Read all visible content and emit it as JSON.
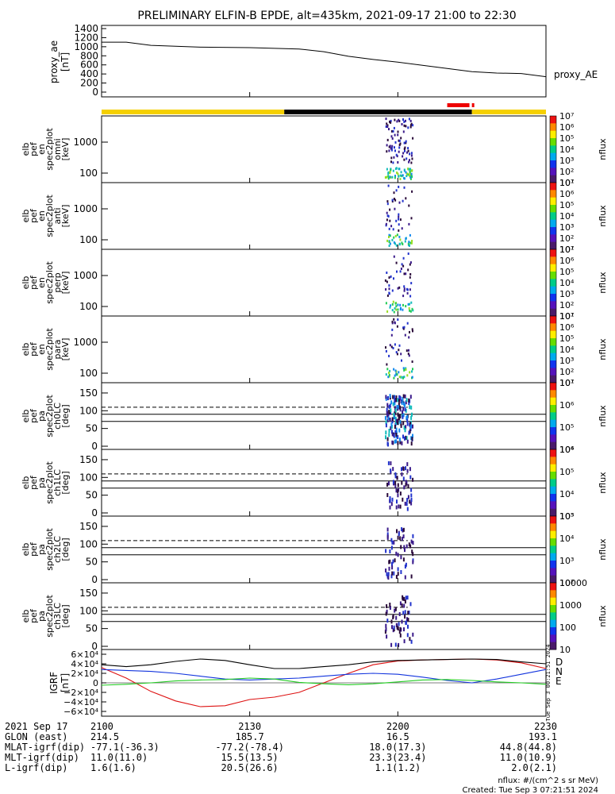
{
  "title": "PRELIMINARY ELFIN-B EPDE, alt=435km, 2021-09-17 21:00 to 22:30",
  "colors": {
    "sat_yellow": "#f5d000",
    "sat_black": "#000000",
    "sat_red": "#ee0000",
    "D": "#dd1111",
    "N": "#1133dd",
    "E": "#22cc22"
  },
  "chart_data": [
    {
      "type": "line",
      "name": "proxy_ae",
      "ylabel": "proxy_ae [nT]",
      "right_label": "proxy_AE",
      "ylim": [
        0,
        1400
      ],
      "yticks": [
        "0",
        "200",
        "400",
        "600",
        "800",
        "1000",
        "1200",
        "1400"
      ],
      "x_minutes": [
        0,
        5,
        10,
        20,
        30,
        40,
        45,
        50,
        55,
        60,
        65,
        70,
        75,
        80,
        85,
        90
      ],
      "values": [
        1100,
        1100,
        1030,
        990,
        980,
        950,
        890,
        790,
        720,
        660,
        590,
        520,
        450,
        420,
        410,
        340
      ]
    },
    {
      "type": "heatmap",
      "name": "omni",
      "ylabel": "elb pef en spec2plot omni [keV]",
      "yticks": [
        "100",
        "1000"
      ],
      "zlabel": "nflux",
      "zticks": [
        "10¹",
        "10²",
        "10³",
        "10⁴",
        "10⁵",
        "10⁶",
        "10⁷"
      ],
      "active_minutes": [
        58,
        62
      ]
    },
    {
      "type": "heatmap",
      "name": "anti",
      "ylabel": "elb pef en spec2plot anti [keV]",
      "yticks": [
        "100",
        "1000"
      ],
      "zlabel": "nflux",
      "zticks": [
        "10¹",
        "10²",
        "10³",
        "10⁴",
        "10⁵",
        "10⁶",
        "10⁷"
      ],
      "active_minutes": [
        58,
        62
      ]
    },
    {
      "type": "heatmap",
      "name": "perp",
      "ylabel": "elb pef en spec2plot perp [keV]",
      "yticks": [
        "100",
        "1000"
      ],
      "zlabel": "nflux",
      "zticks": [
        "10¹",
        "10²",
        "10³",
        "10⁴",
        "10⁵",
        "10⁶",
        "10⁷"
      ],
      "active_minutes": [
        58,
        62
      ]
    },
    {
      "type": "heatmap",
      "name": "para",
      "ylabel": "elb pef en spec2plot para [keV]",
      "yticks": [
        "100",
        "1000"
      ],
      "zlabel": "nflux",
      "zticks": [
        "10¹",
        "10²",
        "10³",
        "10⁴",
        "10⁵",
        "10⁶",
        "10⁷"
      ],
      "active_minutes": [
        58,
        62
      ]
    },
    {
      "type": "heatmap",
      "name": "ch0LC",
      "ylabel": "elb pef pa spec2plot ch0LC [deg]",
      "ylim": [
        0,
        180
      ],
      "yticks": [
        "0",
        "50",
        "100",
        "150"
      ],
      "zlabel": "nflux",
      "zticks": [
        "10⁴",
        "10⁵",
        "10⁶",
        "10⁷"
      ],
      "loss_cone_deg": [
        70,
        90,
        110
      ],
      "active_minutes": [
        58,
        62
      ]
    },
    {
      "type": "heatmap",
      "name": "ch1LC",
      "ylabel": "elb pef pa spec2plot ch1LC [deg]",
      "ylim": [
        0,
        180
      ],
      "yticks": [
        "0",
        "50",
        "100",
        "150"
      ],
      "zlabel": "nflux",
      "zticks": [
        "10³",
        "10⁴",
        "10⁵",
        "10⁶"
      ],
      "loss_cone_deg": [
        70,
        90,
        110
      ],
      "active_minutes": [
        58,
        62
      ]
    },
    {
      "type": "heatmap",
      "name": "ch2LC",
      "ylabel": "elb pef pa spec2plot ch2LC [deg]",
      "ylim": [
        0,
        180
      ],
      "yticks": [
        "0",
        "50",
        "100",
        "150"
      ],
      "zlabel": "nflux",
      "zticks": [
        "10²",
        "10³",
        "10⁴",
        "10⁵"
      ],
      "loss_cone_deg": [
        70,
        90,
        110
      ],
      "active_minutes": [
        58,
        62
      ]
    },
    {
      "type": "heatmap",
      "name": "ch3LC",
      "ylabel": "elb pef pa spec2plot ch3LC [deg]",
      "ylim": [
        0,
        180
      ],
      "yticks": [
        "0",
        "50",
        "100",
        "150"
      ],
      "zlabel": "nflux",
      "zticks": [
        "10",
        "100",
        "1000",
        "10000"
      ],
      "loss_cone_deg": [
        70,
        90,
        110
      ],
      "active_minutes": [
        58,
        62
      ]
    },
    {
      "type": "line",
      "name": "IGRF",
      "ylabel": "IGRF [nT]",
      "ylim": [
        -60000,
        60000
      ],
      "yticks": [
        "−6×10⁴",
        "−4×10⁴",
        "−2×10⁴",
        "0",
        "2×10⁴",
        "4×10⁴",
        "6×10⁴"
      ],
      "x_minutes": [
        0,
        5,
        10,
        15,
        20,
        25,
        30,
        35,
        40,
        45,
        50,
        55,
        60,
        65,
        70,
        75,
        80,
        85,
        90
      ],
      "series": [
        {
          "name": "D",
          "values": [
            32000,
            10000,
            -18000,
            -38000,
            -50000,
            -48000,
            -35000,
            -30000,
            -20000,
            0,
            20000,
            38000,
            46000,
            48000,
            49000,
            50000,
            48000,
            42000,
            30000
          ]
        },
        {
          "name": "N",
          "values": [
            28000,
            26000,
            24000,
            20000,
            14000,
            8000,
            6000,
            8000,
            10000,
            14000,
            18000,
            20000,
            18000,
            12000,
            5000,
            0,
            8000,
            18000,
            28000
          ]
        },
        {
          "name": "E",
          "values": [
            -5000,
            -3000,
            0,
            4000,
            6000,
            7000,
            10000,
            8000,
            1000,
            -2000,
            -4000,
            -2000,
            2000,
            6000,
            7000,
            5000,
            2000,
            0,
            -3000
          ]
        },
        {
          "name": "total",
          "values": [
            38000,
            34000,
            38000,
            45000,
            50000,
            47000,
            38000,
            30000,
            30000,
            34000,
            38000,
            44000,
            47000,
            48000,
            49000,
            50000,
            49000,
            44000,
            40000
          ]
        }
      ],
      "legend": [
        "D",
        "N",
        "E"
      ]
    }
  ],
  "x_axis": {
    "ticks": [
      {
        "minute": 0,
        "label": "2100"
      },
      {
        "minute": 30,
        "label": "2130"
      },
      {
        "minute": 60,
        "label": "2200"
      },
      {
        "minute": 90,
        "label": "2230"
      }
    ]
  },
  "ephemeris": {
    "labels": [
      "2021 Sep 17",
      "GLON (east)",
      "MLAT-igrf(dip)",
      "MLT-igrf(dip)",
      "L-igrf(dip)"
    ],
    "columns": [
      {
        "minute": 0,
        "values": [
          "2100",
          "214.5",
          "-77.1(-36.3)",
          "11.0(11.0)",
          "1.6(1.6)"
        ]
      },
      {
        "minute": 30,
        "values": [
          "2130",
          "185.7",
          "-77.2(-78.4)",
          "15.5(13.5)",
          "20.5(26.6)"
        ]
      },
      {
        "minute": 60,
        "values": [
          "2200",
          "16.5",
          "18.0(17.3)",
          "23.3(23.4)",
          "1.1(1.2)"
        ]
      },
      {
        "minute": 90,
        "values": [
          "2230",
          "193.1",
          "44.8(44.8)",
          "11.0(10.9)",
          "2.0(2.1)"
        ]
      }
    ]
  },
  "side_stamp": "Tue Sep  3 00:21:51 2024",
  "footer": {
    "line1": "nflux: #/(cm^2 s sr MeV)",
    "line2": "Created: Tue Sep  3 07:21:51 2024"
  }
}
